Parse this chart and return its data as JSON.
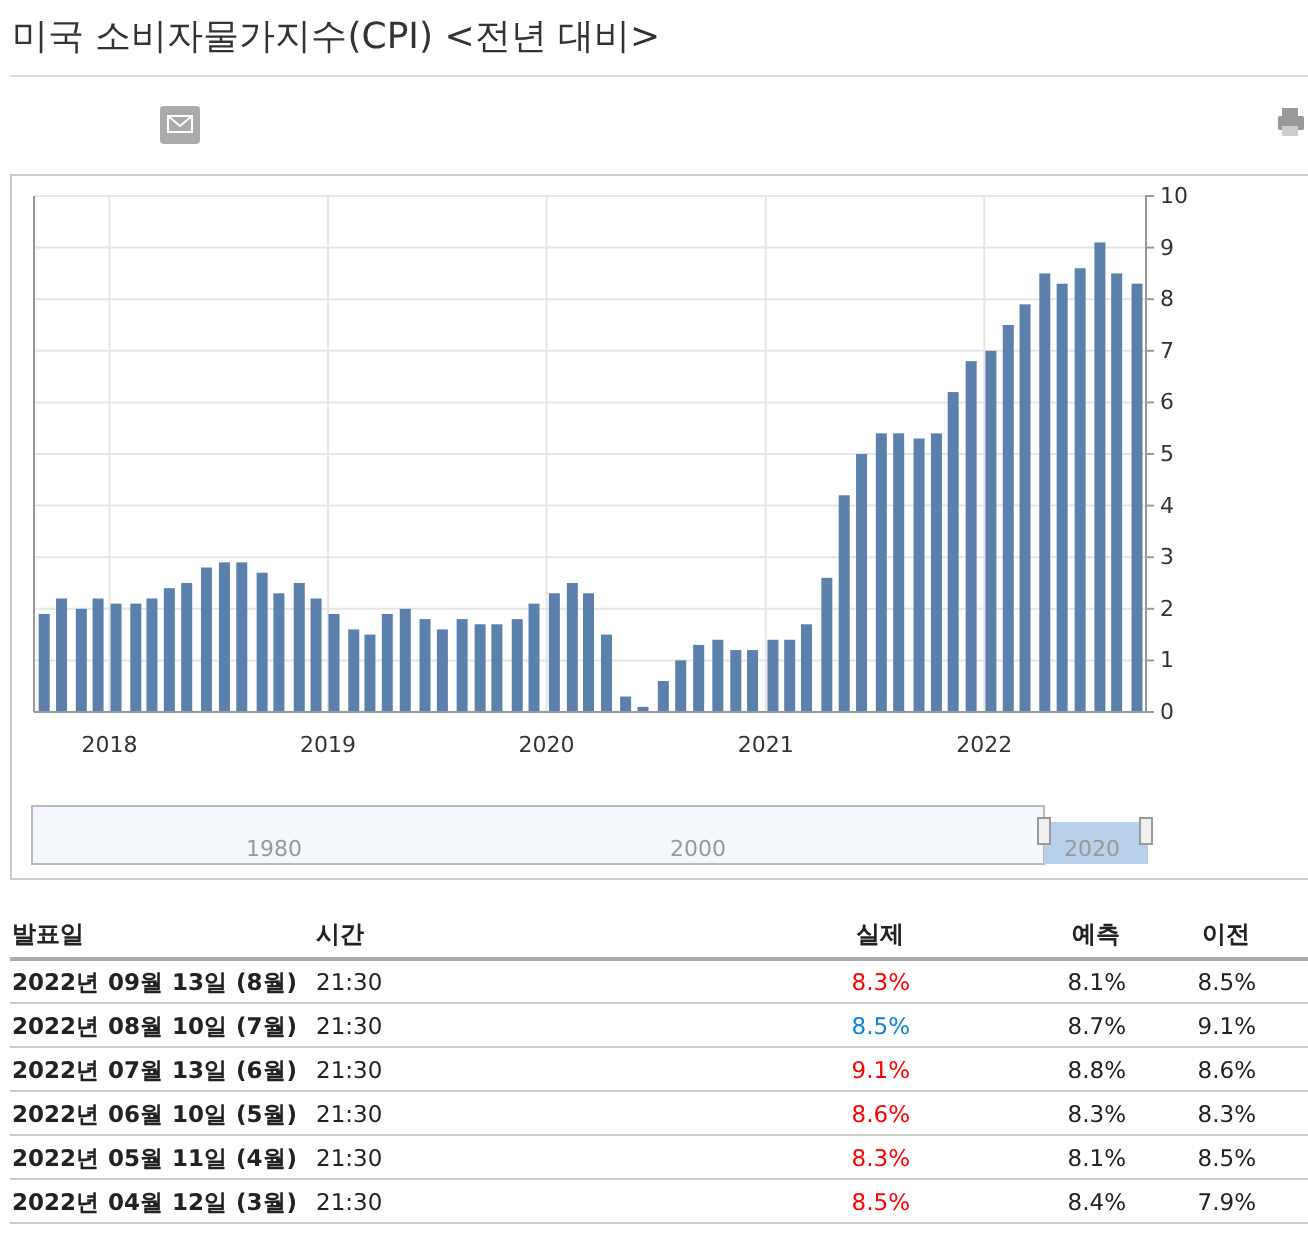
{
  "chart_data": [
    {
      "type": "bar",
      "title": "미국 소비자물가지수(CPI) <전년 대비>",
      "x": [
        "2017-09-14",
        "2017-10-13",
        "2017-11-15",
        "2017-12-13",
        "2018-01-12",
        "2018-02-14",
        "2018-03-13",
        "2018-04-11",
        "2018-05-10",
        "2018-06-12",
        "2018-07-12",
        "2018-08-10",
        "2018-09-13",
        "2018-10-11",
        "2018-11-14",
        "2018-12-12",
        "2019-01-11",
        "2019-02-13",
        "2019-03-12",
        "2019-04-10",
        "2019-05-10",
        "2019-06-12",
        "2019-07-11",
        "2019-08-13",
        "2019-09-12",
        "2019-10-10",
        "2019-11-13",
        "2019-12-11",
        "2020-01-14",
        "2020-02-13",
        "2020-03-11",
        "2020-04-10",
        "2020-05-12",
        "2020-06-10",
        "2020-07-14",
        "2020-08-12",
        "2020-09-11",
        "2020-10-13",
        "2020-11-12",
        "2020-12-10",
        "2021-01-13",
        "2021-02-10",
        "2021-03-10",
        "2021-04-13",
        "2021-05-12",
        "2021-06-10",
        "2021-07-13",
        "2021-08-11",
        "2021-09-14",
        "2021-10-13",
        "2021-11-10",
        "2021-12-10",
        "2022-01-12",
        "2022-02-10",
        "2022-03-10",
        "2022-04-12",
        "2022-05-11",
        "2022-06-10",
        "2022-07-13",
        "2022-08-10",
        "2022-09-13"
      ],
      "values": [
        1.9,
        2.2,
        2.0,
        2.2,
        2.1,
        2.1,
        2.2,
        2.4,
        2.5,
        2.8,
        2.9,
        2.9,
        2.7,
        2.3,
        2.5,
        2.2,
        1.9,
        1.6,
        1.5,
        1.9,
        2.0,
        1.8,
        1.6,
        1.8,
        1.7,
        1.7,
        1.8,
        2.1,
        2.3,
        2.5,
        2.3,
        1.5,
        0.3,
        0.1,
        0.6,
        1.0,
        1.3,
        1.4,
        1.2,
        1.2,
        1.4,
        1.4,
        1.7,
        2.6,
        4.2,
        5.0,
        5.4,
        5.4,
        5.3,
        5.4,
        6.2,
        6.8,
        7.0,
        7.5,
        7.9,
        8.5,
        8.3,
        8.6,
        9.1,
        8.5,
        8.3
      ],
      "color": "#5b80ab",
      "xlim": [
        "2017-08-28",
        "2022-09-28"
      ],
      "xticks": [
        {
          "value": "2018-01-01",
          "label": "2018"
        },
        {
          "value": "2019-01-01",
          "label": "2019"
        },
        {
          "value": "2020-01-01",
          "label": "2020"
        },
        {
          "value": "2021-01-01",
          "label": "2021"
        },
        {
          "value": "2022-01-01",
          "label": "2022"
        }
      ],
      "ylim": [
        0,
        10
      ],
      "yticks": [
        0,
        1,
        2,
        3,
        4,
        5,
        6,
        7,
        8,
        9,
        10
      ],
      "grid": true,
      "annotations": [
        "1980",
        "2000",
        "2020"
      ]
    },
    {
      "type": "other",
      "categories": [
        "발표일",
        "시간",
        "실제",
        "예측",
        "이전"
      ],
      "y_categories": [
        "2022년 09월 13일 (8월)",
        "2022년 08월 10일 (7월)",
        "2022년 07월 13일 (6월)",
        "2022년 06월 10일 (5월)",
        "2022년 05월 11일 (4월)",
        "2022년 04월 12일 (3월)"
      ],
      "cell_labels": [
        [
          "21:30",
          "8.3%",
          "8.1%",
          "8.5%"
        ],
        [
          "21:30",
          "8.5%",
          "8.7%",
          "9.1%"
        ],
        [
          "21:30",
          "9.1%",
          "8.8%",
          "8.6%"
        ],
        [
          "21:30",
          "8.6%",
          "8.3%",
          "8.3%"
        ],
        [
          "21:30",
          "8.3%",
          "8.1%",
          "8.5%"
        ],
        [
          "21:30",
          "8.5%",
          "8.4%",
          "7.9%"
        ]
      ],
      "colors": [
        "#ff0000",
        "#0a84d6",
        "#ff0000",
        "#ff0000",
        "#ff0000",
        "#ff0000"
      ]
    }
  ]
}
